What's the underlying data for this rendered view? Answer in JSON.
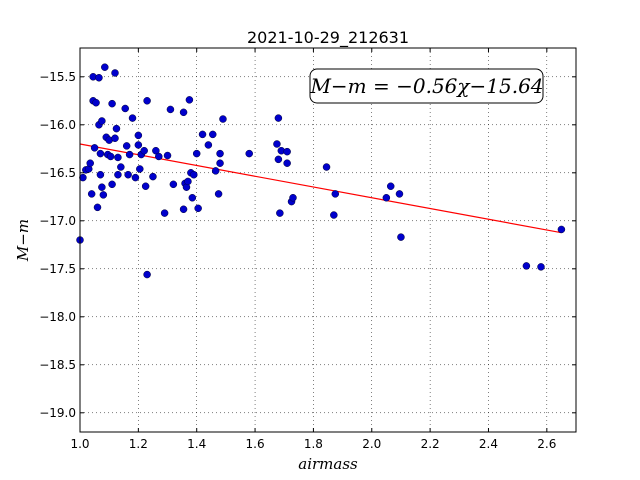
{
  "chart_data": {
    "type": "scatter",
    "title": "2021-10-29_212631",
    "xlabel": "airmass",
    "ylabel": "M−m",
    "xlim": [
      1.0,
      2.7
    ],
    "ylim": [
      -19.2,
      -15.2
    ],
    "y_inverted": true,
    "xticks": [
      1.0,
      1.2,
      1.4,
      1.6,
      1.8,
      2.0,
      2.2,
      2.4,
      2.6
    ],
    "xtick_labels": [
      "1.0",
      "1.2",
      "1.4",
      "1.6",
      "1.8",
      "2.0",
      "2.2",
      "2.4",
      "2.6"
    ],
    "yticks": [
      -15.5,
      -16.0,
      -16.5,
      -17.0,
      -17.5,
      -18.0,
      -18.5,
      -19.0
    ],
    "ytick_labels": [
      "−15.5",
      "−16.0",
      "−16.5",
      "−17.0",
      "−17.5",
      "−18.0",
      "−18.5",
      "−19.0"
    ],
    "grid": true,
    "annotation": "M−m = −0.56χ−15.64",
    "point_color": "#0000cc",
    "fit_color": "#ff0000",
    "fit_line": {
      "slope": -0.56,
      "intercept": -15.64,
      "x": [
        1.0,
        2.65
      ]
    },
    "points": [
      {
        "x": 1.0,
        "y": -17.2
      },
      {
        "x": 1.01,
        "y": -16.55
      },
      {
        "x": 1.02,
        "y": -16.47
      },
      {
        "x": 1.03,
        "y": -16.46
      },
      {
        "x": 1.035,
        "y": -16.4
      },
      {
        "x": 1.04,
        "y": -16.72
      },
      {
        "x": 1.045,
        "y": -15.75
      },
      {
        "x": 1.045,
        "y": -15.5
      },
      {
        "x": 1.05,
        "y": -16.24
      },
      {
        "x": 1.055,
        "y": -15.77
      },
      {
        "x": 1.06,
        "y": -16.86
      },
      {
        "x": 1.065,
        "y": -15.51
      },
      {
        "x": 1.065,
        "y": -16.0
      },
      {
        "x": 1.07,
        "y": -16.52
      },
      {
        "x": 1.07,
        "y": -16.3
      },
      {
        "x": 1.075,
        "y": -16.65
      },
      {
        "x": 1.075,
        "y": -15.96
      },
      {
        "x": 1.08,
        "y": -16.73
      },
      {
        "x": 1.085,
        "y": -15.4
      },
      {
        "x": 1.09,
        "y": -16.13
      },
      {
        "x": 1.095,
        "y": -16.31
      },
      {
        "x": 1.1,
        "y": -16.16
      },
      {
        "x": 1.105,
        "y": -16.33
      },
      {
        "x": 1.11,
        "y": -16.62
      },
      {
        "x": 1.11,
        "y": -15.78
      },
      {
        "x": 1.12,
        "y": -15.46
      },
      {
        "x": 1.12,
        "y": -16.14
      },
      {
        "x": 1.125,
        "y": -16.04
      },
      {
        "x": 1.13,
        "y": -16.52
      },
      {
        "x": 1.13,
        "y": -16.34
      },
      {
        "x": 1.14,
        "y": -16.44
      },
      {
        "x": 1.155,
        "y": -15.83
      },
      {
        "x": 1.16,
        "y": -16.22
      },
      {
        "x": 1.165,
        "y": -16.52
      },
      {
        "x": 1.17,
        "y": -16.31
      },
      {
        "x": 1.18,
        "y": -15.93
      },
      {
        "x": 1.19,
        "y": -16.55
      },
      {
        "x": 1.2,
        "y": -16.11
      },
      {
        "x": 1.2,
        "y": -16.21
      },
      {
        "x": 1.205,
        "y": -16.46
      },
      {
        "x": 1.21,
        "y": -16.31
      },
      {
        "x": 1.22,
        "y": -16.27
      },
      {
        "x": 1.225,
        "y": -16.64
      },
      {
        "x": 1.23,
        "y": -17.56
      },
      {
        "x": 1.23,
        "y": -15.75
      },
      {
        "x": 1.25,
        "y": -16.54
      },
      {
        "x": 1.26,
        "y": -16.27
      },
      {
        "x": 1.27,
        "y": -16.33
      },
      {
        "x": 1.29,
        "y": -16.92
      },
      {
        "x": 1.3,
        "y": -16.32
      },
      {
        "x": 1.31,
        "y": -15.84
      },
      {
        "x": 1.32,
        "y": -16.62
      },
      {
        "x": 1.355,
        "y": -16.88
      },
      {
        "x": 1.355,
        "y": -15.87
      },
      {
        "x": 1.36,
        "y": -16.61
      },
      {
        "x": 1.365,
        "y": -16.65
      },
      {
        "x": 1.37,
        "y": -16.59
      },
      {
        "x": 1.375,
        "y": -15.74
      },
      {
        "x": 1.38,
        "y": -16.5
      },
      {
        "x": 1.385,
        "y": -16.76
      },
      {
        "x": 1.39,
        "y": -16.52
      },
      {
        "x": 1.4,
        "y": -16.3
      },
      {
        "x": 1.405,
        "y": -16.87
      },
      {
        "x": 1.42,
        "y": -16.1
      },
      {
        "x": 1.44,
        "y": -16.21
      },
      {
        "x": 1.455,
        "y": -16.1
      },
      {
        "x": 1.465,
        "y": -16.48
      },
      {
        "x": 1.475,
        "y": -16.72
      },
      {
        "x": 1.48,
        "y": -16.3
      },
      {
        "x": 1.48,
        "y": -16.4
      },
      {
        "x": 1.49,
        "y": -15.94
      },
      {
        "x": 1.58,
        "y": -16.3
      },
      {
        "x": 1.675,
        "y": -16.2
      },
      {
        "x": 1.68,
        "y": -15.93
      },
      {
        "x": 1.68,
        "y": -16.36
      },
      {
        "x": 1.685,
        "y": -16.92
      },
      {
        "x": 1.69,
        "y": -16.27
      },
      {
        "x": 1.71,
        "y": -16.4
      },
      {
        "x": 1.71,
        "y": -16.28
      },
      {
        "x": 1.725,
        "y": -16.8
      },
      {
        "x": 1.73,
        "y": -16.76
      },
      {
        "x": 1.845,
        "y": -16.44
      },
      {
        "x": 1.87,
        "y": -16.94
      },
      {
        "x": 1.875,
        "y": -16.72
      },
      {
        "x": 2.05,
        "y": -16.76
      },
      {
        "x": 2.065,
        "y": -16.64
      },
      {
        "x": 2.095,
        "y": -16.72
      },
      {
        "x": 2.1,
        "y": -17.17
      },
      {
        "x": 2.53,
        "y": -17.47
      },
      {
        "x": 2.58,
        "y": -17.48
      },
      {
        "x": 2.65,
        "y": -17.09
      }
    ]
  }
}
